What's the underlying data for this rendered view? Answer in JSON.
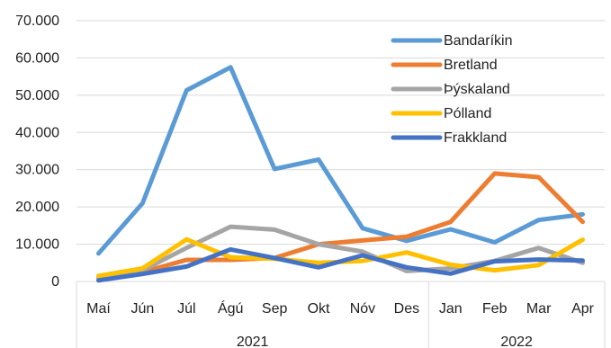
{
  "chart_data": {
    "type": "line",
    "categories": [
      "Maí",
      "Jún",
      "Júl",
      "Ágú",
      "Sep",
      "Okt",
      "Nóv",
      "Des",
      "Jan",
      "Feb",
      "Mar",
      "Apr"
    ],
    "category_groups": [
      {
        "label": "2021",
        "span": 8
      },
      {
        "label": "2022",
        "span": 4
      }
    ],
    "ylim": [
      0,
      70000
    ],
    "yticks": [
      0,
      10000,
      20000,
      30000,
      40000,
      50000,
      60000,
      70000
    ],
    "ytick_labels": [
      "0",
      "10.000",
      "20.000",
      "30.000",
      "40.000",
      "50.000",
      "60.000",
      "70.000"
    ],
    "grid": true,
    "legend_position": "top-right",
    "series": [
      {
        "name": "Bandaríkin",
        "color": "#5B9BD5",
        "values": [
          7500,
          21000,
          51300,
          57500,
          30200,
          32700,
          14300,
          10900,
          14000,
          10500,
          16500,
          18000
        ]
      },
      {
        "name": "Bretland",
        "color": "#ED7D31",
        "values": [
          300,
          2500,
          5800,
          5800,
          6300,
          10000,
          11000,
          12000,
          16000,
          29000,
          28000,
          16000
        ]
      },
      {
        "name": "Þýskaland",
        "color": "#A5A5A5",
        "values": [
          1000,
          3000,
          9000,
          14700,
          13900,
          10000,
          8000,
          2800,
          3500,
          5500,
          9000,
          5000
        ]
      },
      {
        "name": "Pólland",
        "color": "#FFC000",
        "values": [
          1500,
          3500,
          11300,
          6500,
          6100,
          5000,
          5500,
          7800,
          4500,
          3000,
          4400,
          11200
        ]
      },
      {
        "name": "Frakkland",
        "color": "#4472C4",
        "values": [
          300,
          2000,
          4000,
          8600,
          6300,
          3800,
          7000,
          3800,
          2100,
          5400,
          5900,
          5600
        ]
      }
    ]
  }
}
